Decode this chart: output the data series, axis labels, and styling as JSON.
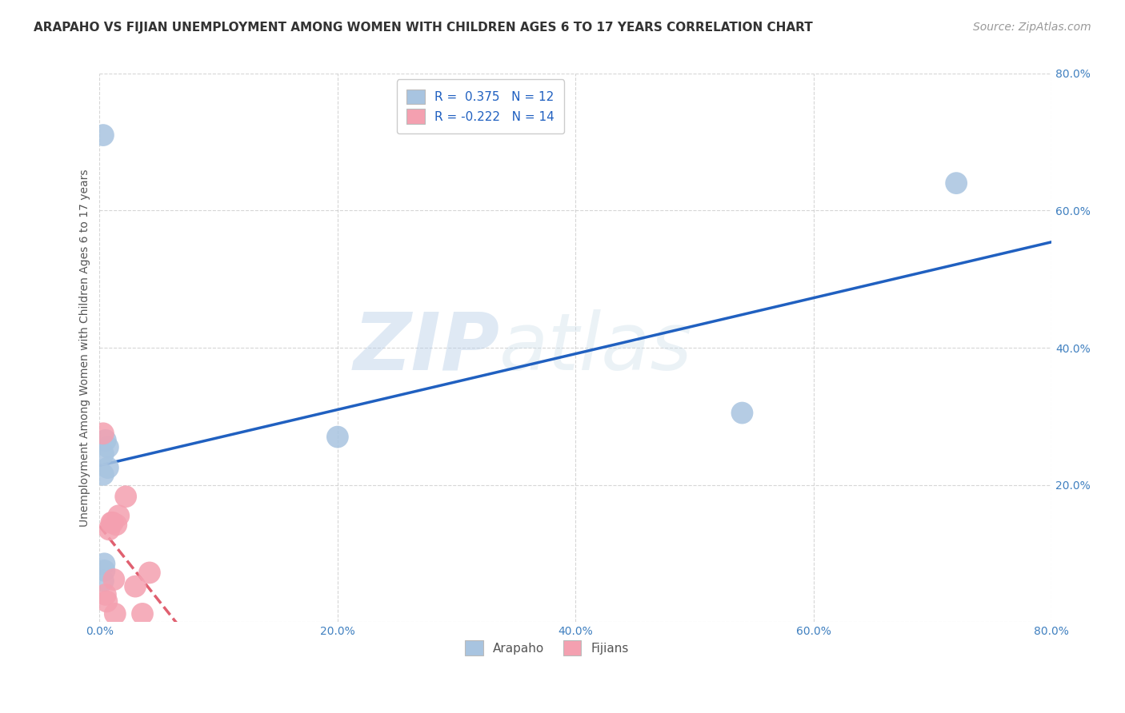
{
  "title": "ARAPAHO VS FIJIAN UNEMPLOYMENT AMONG WOMEN WITH CHILDREN AGES 6 TO 17 YEARS CORRELATION CHART",
  "source": "Source: ZipAtlas.com",
  "ylabel": "Unemployment Among Women with Children Ages 6 to 17 years",
  "xlabel": "",
  "xlim": [
    0,
    0.8
  ],
  "ylim": [
    0,
    0.8
  ],
  "xticks": [
    0.0,
    0.2,
    0.4,
    0.6,
    0.8
  ],
  "yticks": [
    0.0,
    0.2,
    0.4,
    0.6,
    0.8
  ],
  "xtick_labels": [
    "0.0%",
    "20.0%",
    "40.0%",
    "60.0%",
    "80.0%"
  ],
  "ytick_labels": [
    "",
    "20.0%",
    "40.0%",
    "60.0%",
    "80.0%"
  ],
  "arapaho_color": "#a8c4e0",
  "fijian_color": "#f4a0b0",
  "arapaho_line_color": "#2060c0",
  "fijian_line_color": "#e06070",
  "watermark_zip": "ZIP",
  "watermark_atlas": "atlas",
  "legend_r_arapaho": "R =  0.375",
  "legend_n_arapaho": "N = 12",
  "legend_r_fijian": "R = -0.222",
  "legend_n_fijian": "N = 14",
  "arapaho_x": [
    0.003,
    0.005,
    0.007,
    0.007,
    0.003,
    0.003,
    0.004,
    0.004,
    0.003,
    0.2,
    0.54,
    0.72
  ],
  "arapaho_y": [
    0.71,
    0.265,
    0.255,
    0.225,
    0.245,
    0.215,
    0.085,
    0.075,
    0.06,
    0.27,
    0.305,
    0.64
  ],
  "fijian_x": [
    0.003,
    0.005,
    0.006,
    0.008,
    0.01,
    0.011,
    0.012,
    0.013,
    0.014,
    0.016,
    0.022,
    0.03,
    0.036,
    0.042
  ],
  "fijian_y": [
    0.275,
    0.04,
    0.03,
    0.135,
    0.145,
    0.145,
    0.062,
    0.012,
    0.142,
    0.155,
    0.183,
    0.052,
    0.012,
    0.072
  ],
  "grid_color": "#cccccc",
  "background_color": "#ffffff",
  "title_fontsize": 11,
  "axis_label_fontsize": 10,
  "tick_fontsize": 10,
  "legend_fontsize": 11,
  "source_fontsize": 10
}
